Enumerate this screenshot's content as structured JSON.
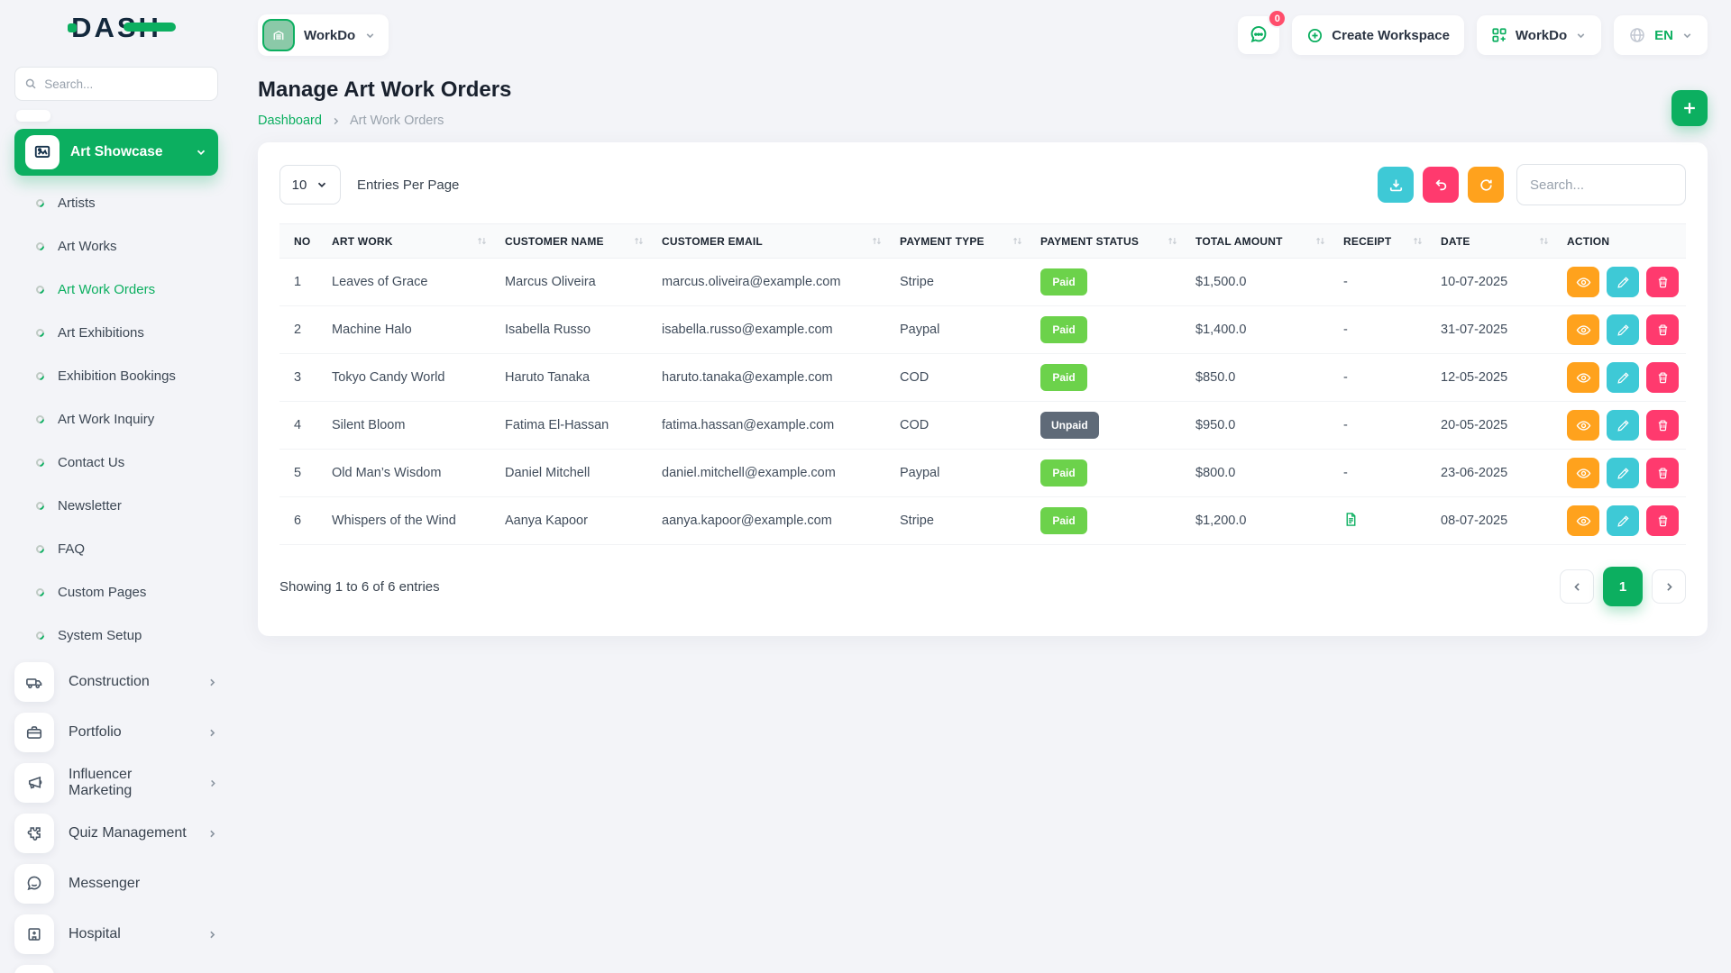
{
  "app": {
    "logo_text": "DASH"
  },
  "colors": {
    "primary_green": "#0caf60",
    "warning_orange": "#ffa21d",
    "info_teal": "#3ec9d6",
    "danger_pink": "#ff3a6e",
    "paid_badge": "#6cd24b",
    "unpaid_badge": "#5f6a78",
    "notification_red": "#ff4d6b"
  },
  "sidebar": {
    "search_placeholder": "Search...",
    "active_group": {
      "label": "Art Showcase"
    },
    "sub_items": [
      {
        "label": "Artists",
        "active": false
      },
      {
        "label": "Art Works",
        "active": false
      },
      {
        "label": "Art Work Orders",
        "active": true
      },
      {
        "label": "Art Exhibitions",
        "active": false
      },
      {
        "label": "Exhibition Bookings",
        "active": false
      },
      {
        "label": "Art Work Inquiry",
        "active": false
      },
      {
        "label": "Contact Us",
        "active": false
      },
      {
        "label": "Newsletter",
        "active": false
      },
      {
        "label": "FAQ",
        "active": false
      },
      {
        "label": "Custom Pages",
        "active": false
      },
      {
        "label": "System Setup",
        "active": false
      }
    ],
    "modules": [
      {
        "label": "Construction",
        "icon": "truck-icon",
        "has_chevron": true
      },
      {
        "label": "Portfolio",
        "icon": "briefcase-icon",
        "has_chevron": true
      },
      {
        "label": "Influencer Marketing",
        "icon": "megaphone-icon",
        "has_chevron": true
      },
      {
        "label": "Quiz Management",
        "icon": "puzzle-icon",
        "has_chevron": true
      },
      {
        "label": "Messenger",
        "icon": "chat-bubble-icon",
        "has_chevron": false
      },
      {
        "label": "Hospital",
        "icon": "hospital-icon",
        "has_chevron": true
      }
    ]
  },
  "header": {
    "workspace_current": "WorkDo",
    "messages_badge": "0",
    "create_workspace_label": "Create Workspace",
    "workspace_menu_label": "WorkDo",
    "language": "EN"
  },
  "page": {
    "title": "Manage Art Work Orders",
    "breadcrumb_home": "Dashboard",
    "breadcrumb_current": "Art Work Orders"
  },
  "card": {
    "entries_per_page_value": "10",
    "entries_per_page_label": "Entries Per Page",
    "search_placeholder": "Search...",
    "table": {
      "columns": [
        {
          "label": "NO",
          "sortable": false
        },
        {
          "label": "ART WORK",
          "sortable": true
        },
        {
          "label": "CUSTOMER NAME",
          "sortable": true
        },
        {
          "label": "CUSTOMER EMAIL",
          "sortable": true
        },
        {
          "label": "PAYMENT TYPE",
          "sortable": true
        },
        {
          "label": "PAYMENT STATUS",
          "sortable": true
        },
        {
          "label": "TOTAL AMOUNT",
          "sortable": true
        },
        {
          "label": "RECEIPT",
          "sortable": true
        },
        {
          "label": "DATE",
          "sortable": true
        },
        {
          "label": "ACTION",
          "sortable": false
        }
      ],
      "rows": [
        {
          "no": "1",
          "art_work": "Leaves of Grace",
          "customer_name": "Marcus Oliveira",
          "customer_email": "marcus.oliveira@example.com",
          "payment_type": "Stripe",
          "payment_status": "Paid",
          "amount": "$1,500.0",
          "receipt": "-",
          "date": "10-07-2025"
        },
        {
          "no": "2",
          "art_work": "Machine Halo",
          "customer_name": "Isabella Russo",
          "customer_email": "isabella.russo@example.com",
          "payment_type": "Paypal",
          "payment_status": "Paid",
          "amount": "$1,400.0",
          "receipt": "-",
          "date": "31-07-2025"
        },
        {
          "no": "3",
          "art_work": "Tokyo Candy World",
          "customer_name": "Haruto Tanaka",
          "customer_email": "haruto.tanaka@example.com",
          "payment_type": "COD",
          "payment_status": "Paid",
          "amount": "$850.0",
          "receipt": "-",
          "date": "12-05-2025"
        },
        {
          "no": "4",
          "art_work": "Silent Bloom",
          "customer_name": "Fatima El-Hassan",
          "customer_email": "fatima.hassan@example.com",
          "payment_type": "COD",
          "payment_status": "Unpaid",
          "amount": "$950.0",
          "receipt": "-",
          "date": "20-05-2025"
        },
        {
          "no": "5",
          "art_work": "Old Man’s Wisdom",
          "customer_name": "Daniel Mitchell",
          "customer_email": "daniel.mitchell@example.com",
          "payment_type": "Paypal",
          "payment_status": "Paid",
          "amount": "$800.0",
          "receipt": "-",
          "date": "23-06-2025"
        },
        {
          "no": "6",
          "art_work": "Whispers of the Wind",
          "customer_name": "Aanya Kapoor",
          "customer_email": "aanya.kapoor@example.com",
          "payment_type": "Stripe",
          "payment_status": "Paid",
          "amount": "$1,200.0",
          "receipt": "icon",
          "date": "08-07-2025"
        }
      ]
    },
    "footer": {
      "showing_text": "Showing 1 to 6 of 6 entries",
      "current_page": "1"
    }
  }
}
